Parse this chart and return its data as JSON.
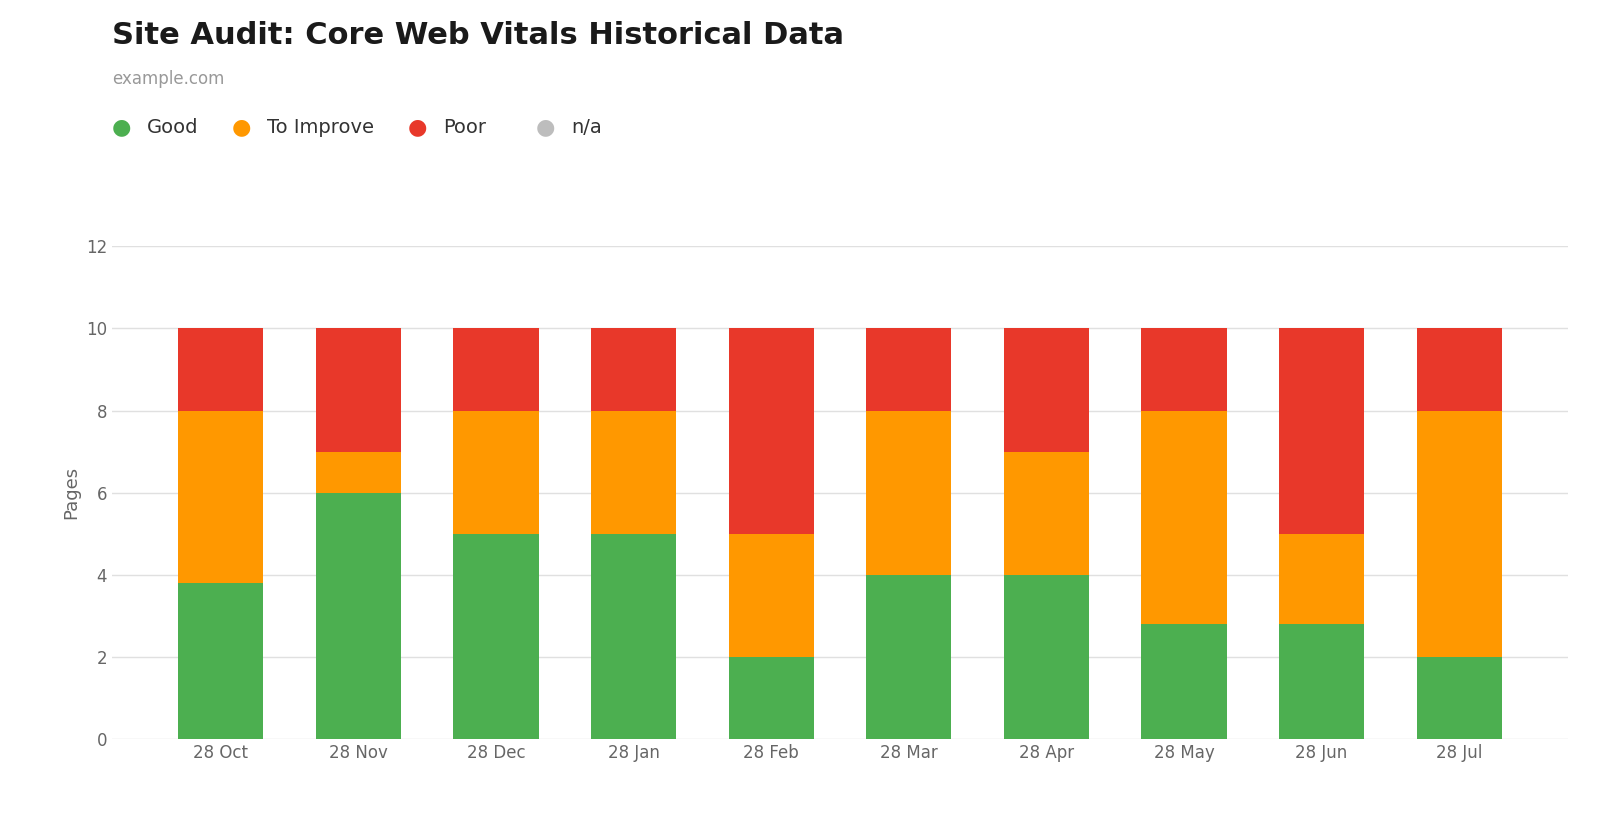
{
  "title": "Site Audit: Core Web Vitals Historical Data",
  "subtitle": "example.com",
  "ylabel": "Pages",
  "categories": [
    "28 Oct",
    "28 Nov",
    "28 Dec",
    "28 Jan",
    "28 Feb",
    "28 Mar",
    "28 Apr",
    "28 May",
    "28 Jun",
    "28 Jul"
  ],
  "good": [
    3.8,
    6.0,
    5.0,
    5.0,
    2.0,
    4.0,
    4.0,
    2.8,
    2.8,
    2.0
  ],
  "to_improve": [
    4.2,
    1.0,
    3.0,
    3.0,
    3.0,
    4.0,
    3.0,
    5.2,
    2.2,
    6.0
  ],
  "poor": [
    2.0,
    3.0,
    2.0,
    2.0,
    5.0,
    2.0,
    3.0,
    2.0,
    5.0,
    2.0
  ],
  "na": [
    0.0,
    0.0,
    0.0,
    0.0,
    0.0,
    0.0,
    0.0,
    0.0,
    0.0,
    0.0
  ],
  "color_good": "#4CAF50",
  "color_to_improve": "#FF9800",
  "color_poor": "#E8382A",
  "color_na": "#BDBDBD",
  "ylim": [
    0,
    12
  ],
  "yticks": [
    0,
    2,
    4,
    6,
    8,
    10,
    12
  ],
  "background_color": "#FFFFFF",
  "grid_color": "#E0E0E0",
  "title_fontsize": 22,
  "subtitle_fontsize": 12,
  "legend_fontsize": 14,
  "axis_label_fontsize": 13,
  "tick_fontsize": 12,
  "bar_width": 0.62
}
